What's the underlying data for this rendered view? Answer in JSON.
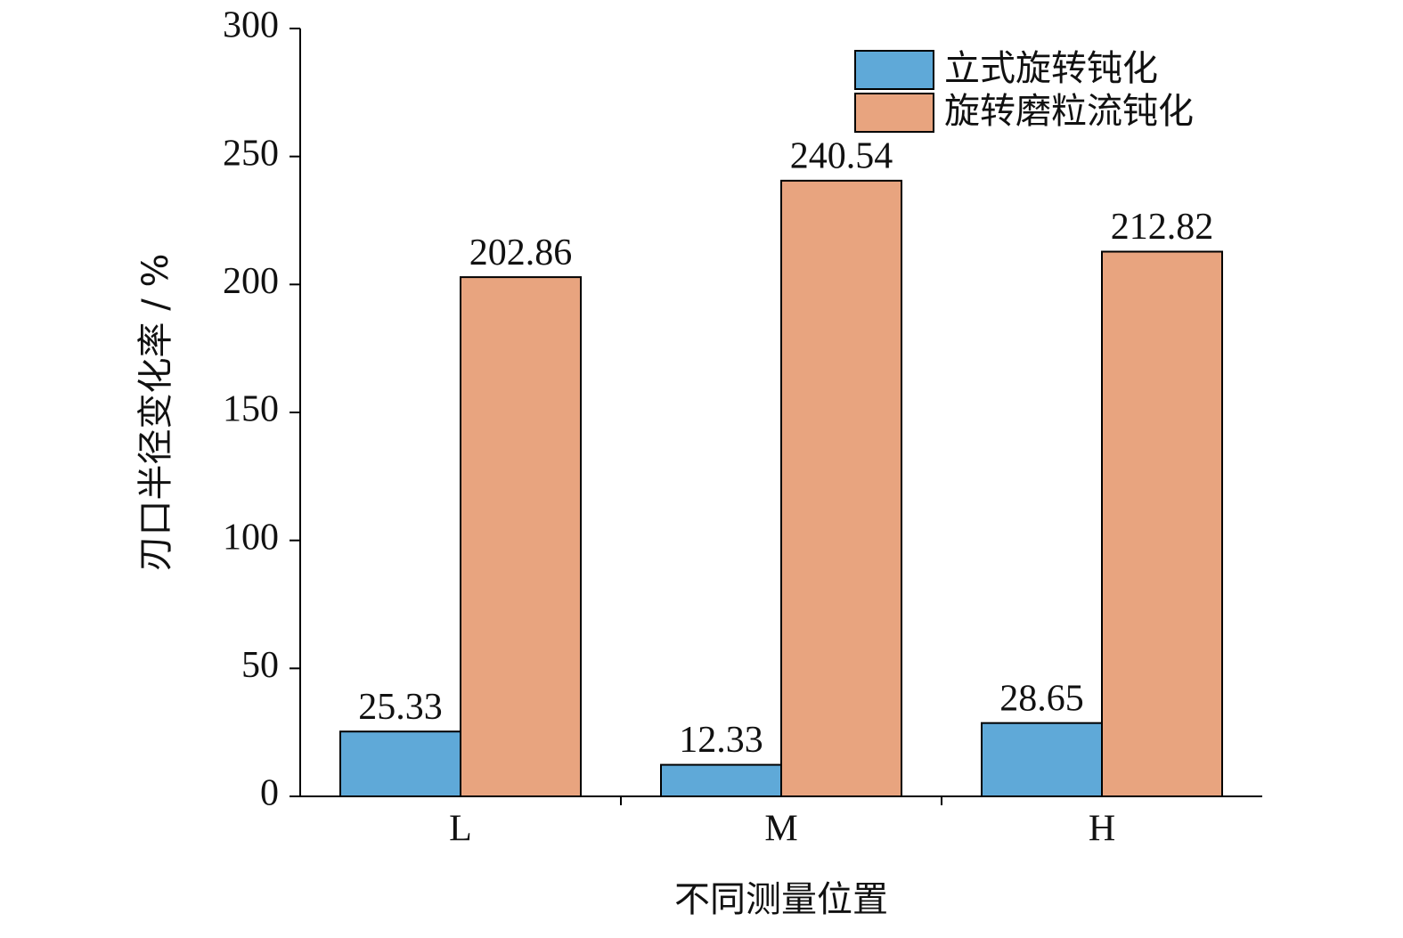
{
  "chart_data": {
    "type": "bar",
    "x_label": "不同测量位置",
    "y_label": "刃口半径变化率 / %",
    "categories": [
      "L",
      "M",
      "H"
    ],
    "series": [
      {
        "name": "立式旋转钝化",
        "color": "#5fa9d8",
        "values": [
          25.33,
          12.33,
          28.65
        ]
      },
      {
        "name": "旋转磨粒流钝化",
        "color": "#e8a47f",
        "values": [
          202.86,
          240.54,
          212.82
        ]
      }
    ],
    "ylim": [
      0,
      300
    ],
    "yticks": [
      0,
      50,
      100,
      150,
      200,
      250,
      300
    ],
    "legend": "top-right"
  }
}
